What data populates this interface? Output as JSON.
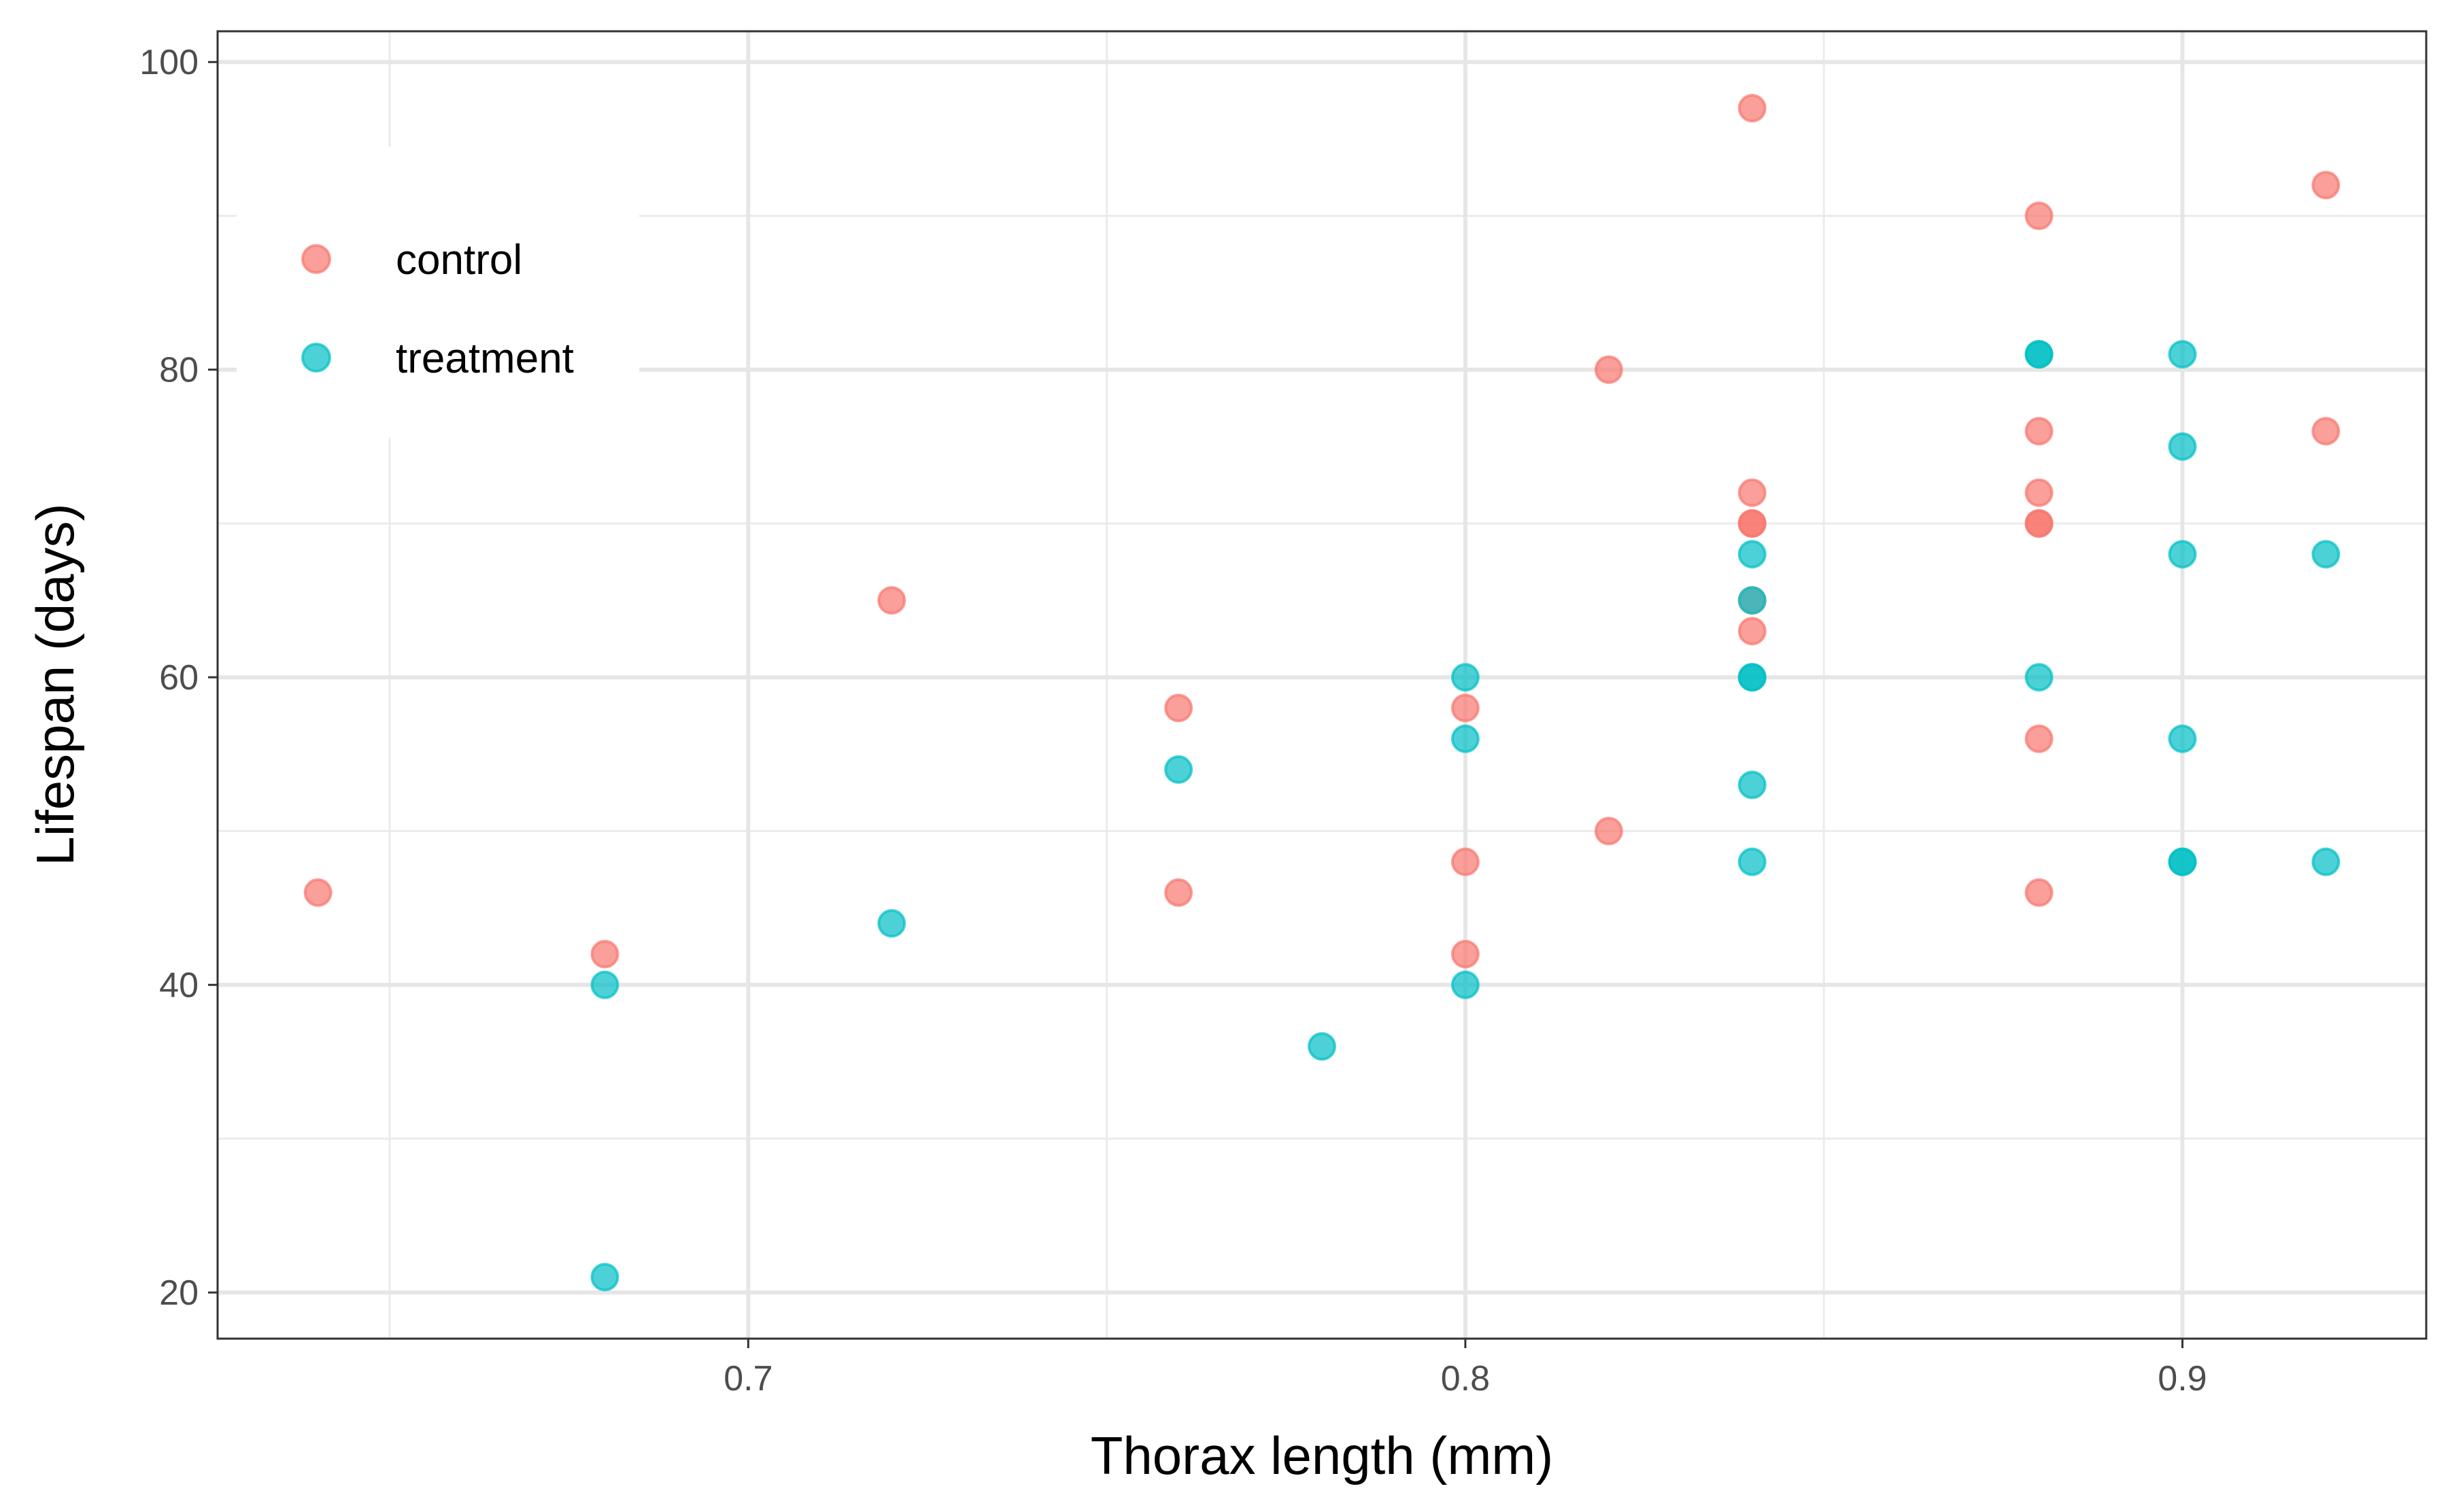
{
  "chart_data": {
    "type": "scatter",
    "title": "",
    "xlabel": "Thorax length (mm)",
    "ylabel": "Lifespan (days)",
    "xlim": [
      0.626,
      0.934
    ],
    "ylim": [
      17,
      102
    ],
    "x_ticks": [
      0.7,
      0.8,
      0.9
    ],
    "x_tick_labels": [
      "0.7",
      "0.8",
      "0.9"
    ],
    "x_minor_ticks": [
      0.65,
      0.75,
      0.85
    ],
    "y_ticks": [
      20,
      40,
      60,
      80,
      100
    ],
    "y_tick_labels": [
      "20",
      "40",
      "60",
      "80",
      "100"
    ],
    "y_minor_ticks": [
      30,
      50,
      70,
      90
    ],
    "grid": true,
    "legend_placement": "top-left",
    "series": [
      {
        "name": "control",
        "color": "#F8766D",
        "points": [
          [
            0.64,
            46
          ],
          [
            0.68,
            42
          ],
          [
            0.72,
            65
          ],
          [
            0.76,
            58
          ],
          [
            0.76,
            46
          ],
          [
            0.8,
            58
          ],
          [
            0.8,
            48
          ],
          [
            0.8,
            42
          ],
          [
            0.82,
            80
          ],
          [
            0.82,
            50
          ],
          [
            0.84,
            97
          ],
          [
            0.84,
            72
          ],
          [
            0.84,
            70
          ],
          [
            0.84,
            70
          ],
          [
            0.84,
            65
          ],
          [
            0.84,
            63
          ],
          [
            0.88,
            90
          ],
          [
            0.88,
            76
          ],
          [
            0.88,
            72
          ],
          [
            0.88,
            70
          ],
          [
            0.88,
            70
          ],
          [
            0.88,
            56
          ],
          [
            0.88,
            46
          ],
          [
            0.92,
            92
          ],
          [
            0.92,
            76
          ]
        ]
      },
      {
        "name": "treatment",
        "color": "#00BFC4",
        "points": [
          [
            0.68,
            40
          ],
          [
            0.68,
            21
          ],
          [
            0.72,
            44
          ],
          [
            0.76,
            54
          ],
          [
            0.78,
            36
          ],
          [
            0.8,
            60
          ],
          [
            0.8,
            56
          ],
          [
            0.8,
            40
          ],
          [
            0.84,
            68
          ],
          [
            0.84,
            65
          ],
          [
            0.84,
            60
          ],
          [
            0.84,
            60
          ],
          [
            0.84,
            53
          ],
          [
            0.84,
            48
          ],
          [
            0.88,
            81
          ],
          [
            0.88,
            81
          ],
          [
            0.88,
            60
          ],
          [
            0.9,
            81
          ],
          [
            0.9,
            75
          ],
          [
            0.9,
            68
          ],
          [
            0.9,
            56
          ],
          [
            0.9,
            48
          ],
          [
            0.9,
            48
          ],
          [
            0.92,
            68
          ],
          [
            0.92,
            48
          ]
        ]
      }
    ]
  }
}
